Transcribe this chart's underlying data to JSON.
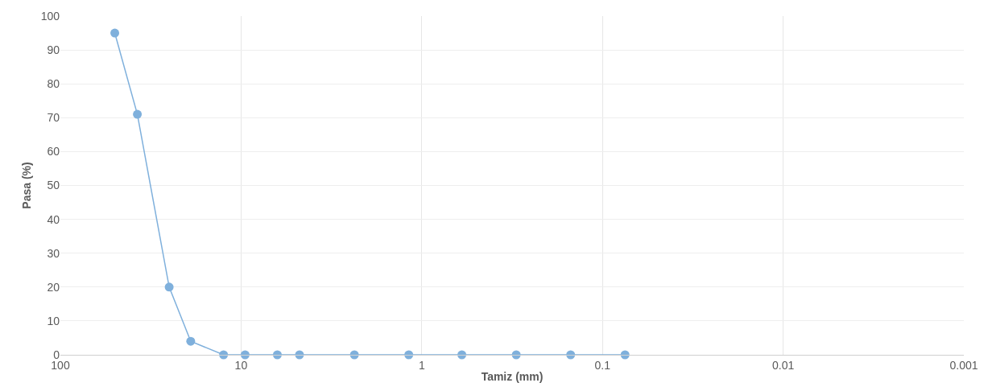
{
  "chart_data": {
    "type": "line",
    "xlabel": "Tamiz (mm)",
    "ylabel": "Pasa (%)",
    "x": [
      50,
      37.5,
      25,
      19,
      12.5,
      9.5,
      6.3,
      4.75,
      2.36,
      1.18,
      0.6,
      0.3,
      0.15,
      0.075
    ],
    "series": [
      {
        "color": "#7fb0dc",
        "values": [
          95,
          71,
          20,
          4,
          0,
          0,
          0,
          0,
          0,
          0,
          0,
          0,
          0,
          0
        ]
      }
    ],
    "log": "x",
    "xlim": [
      100,
      0.001
    ],
    "xticks": [
      100,
      10,
      1,
      0.1,
      0.01,
      0.001
    ],
    "ylim": [
      0,
      100
    ],
    "yticks": [
      0,
      10,
      20,
      30,
      40,
      50,
      60,
      70,
      80,
      90,
      100
    ],
    "grid": true,
    "marker": "circle",
    "line_style": "solid",
    "legend": false
  }
}
